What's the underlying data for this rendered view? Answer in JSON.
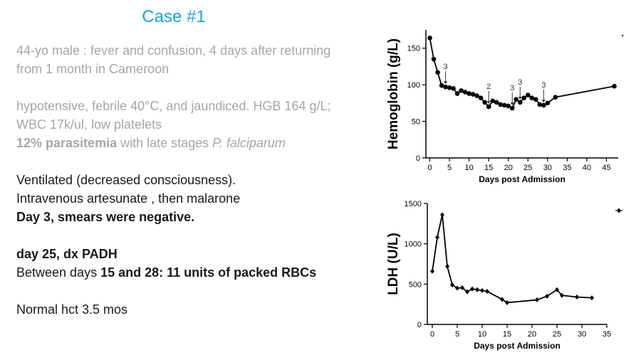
{
  "slide": {
    "title": "Case #1",
    "line1": "44-yo male : fever and confusion, 4 days after returning from 1 month in Cameroon",
    "line2": "hypotensive, febrile 40°C, and jaundiced. HGB 164 g/L; WBC 17k/ul, low platelets",
    "line3_bold": "12% parasitemia",
    "line3_mid": " with late stages ",
    "line3_italic": "P. falciparum",
    "line4": "Ventilated (decreased consciousness).",
    "line5": "Intravenous artesunate , then malarone",
    "line6": "Day 3, smears were negative.",
    "line7": "day 25, dx PADH",
    "line8_a": "Between days ",
    "line8_b": "15 and 28:  11 units of packed RBCs",
    "line9": "Normal hct 3.5 mos"
  },
  "chart_data": [
    {
      "type": "line",
      "ylabel": "Hemoglobin (g/L)",
      "xlabel": "Days post Admission",
      "xlim": [
        -1,
        48
      ],
      "ylim": [
        0,
        175
      ],
      "xticks": [
        0,
        5,
        10,
        15,
        20,
        25,
        30,
        35,
        40,
        45
      ],
      "yticks": [
        0,
        50,
        100,
        150
      ],
      "x": [
        0,
        1,
        2,
        3,
        4,
        5,
        6,
        7,
        8,
        9,
        10,
        11,
        12,
        13,
        14,
        15,
        16,
        17,
        18,
        19,
        20,
        21,
        22,
        23,
        24,
        25,
        26,
        27,
        28,
        29,
        30,
        32,
        47
      ],
      "y": [
        164,
        135,
        117,
        99,
        97,
        96,
        95,
        88,
        92,
        90,
        88,
        87,
        85,
        82,
        76,
        70,
        78,
        76,
        73,
        72,
        71,
        68,
        80,
        76,
        82,
        86,
        82,
        80,
        73,
        72,
        75,
        83,
        98
      ],
      "annotations": [
        {
          "day": 4,
          "text": "3"
        },
        {
          "day": 15,
          "text": "2"
        },
        {
          "day": 21,
          "text": "3"
        },
        {
          "day": 23,
          "text": "3"
        },
        {
          "day": 29,
          "text": "3"
        }
      ]
    },
    {
      "type": "line",
      "ylabel": "LDH (U/L)",
      "xlabel": "Days post Admission",
      "xlim": [
        -1,
        35
      ],
      "ylim": [
        0,
        1500
      ],
      "xticks": [
        0,
        5,
        10,
        15,
        20,
        25,
        30,
        35
      ],
      "yticks": [
        0,
        500,
        1000,
        1500
      ],
      "x": [
        0,
        1,
        2,
        3,
        4,
        5,
        6,
        7,
        8,
        9,
        10,
        11,
        14,
        15,
        21,
        23,
        25,
        26,
        29,
        32
      ],
      "y": [
        660,
        1080,
        1360,
        720,
        490,
        450,
        455,
        405,
        440,
        430,
        420,
        410,
        310,
        270,
        305,
        350,
        430,
        360,
        340,
        330
      ]
    }
  ]
}
